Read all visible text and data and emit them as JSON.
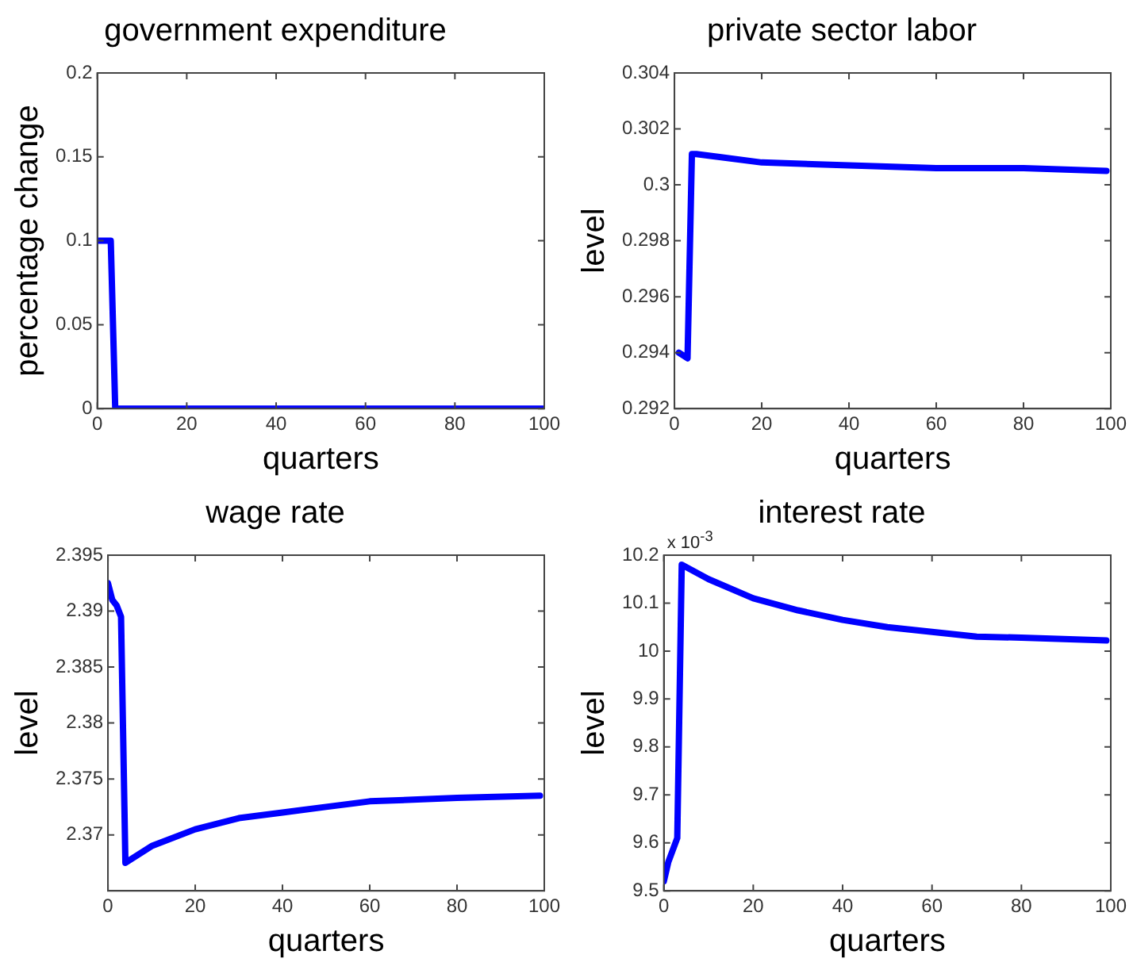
{
  "chart_data": [
    {
      "type": "line",
      "title": "government expenditure",
      "xlabel": "quarters",
      "ylabel": "percentage change",
      "xlim": [
        0,
        100
      ],
      "xticks": [
        0,
        20,
        40,
        60,
        80,
        100
      ],
      "ylim": [
        0,
        0.2
      ],
      "yticks": [
        0,
        0.05,
        0.1,
        0.15,
        0.2
      ],
      "grid": false,
      "legend": false,
      "marker": "none",
      "series": [
        {
          "color": "#0000ff",
          "x": [
            0,
            1,
            2,
            3,
            4,
            100
          ],
          "values": [
            0.1,
            0.1,
            0.1,
            0.1,
            0,
            0
          ]
        }
      ]
    },
    {
      "type": "line",
      "title": "private sector labor",
      "xlabel": "quarters",
      "ylabel": "level",
      "xlim": [
        0,
        100
      ],
      "xticks": [
        0,
        20,
        40,
        60,
        80,
        100
      ],
      "ylim": [
        0.292,
        0.304
      ],
      "yticks": [
        0.292,
        0.294,
        0.296,
        0.298,
        0.3,
        0.302,
        0.304
      ],
      "grid": false,
      "legend": false,
      "marker": "none",
      "series": [
        {
          "color": "#0000ff",
          "x": [
            1,
            2,
            3,
            4,
            5,
            10,
            20,
            40,
            60,
            80,
            99
          ],
          "values": [
            0.294,
            0.2939,
            0.2938,
            0.3011,
            0.3011,
            0.301,
            0.3008,
            0.3007,
            0.3006,
            0.3006,
            0.3005
          ]
        }
      ]
    },
    {
      "type": "line",
      "title": "wage rate",
      "xlabel": "quarters",
      "ylabel": "level",
      "xlim": [
        0,
        100
      ],
      "xticks": [
        0,
        20,
        40,
        60,
        80,
        100
      ],
      "ylim": [
        2.365,
        2.395
      ],
      "yticks": [
        2.37,
        2.375,
        2.38,
        2.385,
        2.39,
        2.395
      ],
      "grid": false,
      "legend": false,
      "marker": "none",
      "series": [
        {
          "color": "#0000ff",
          "x": [
            0,
            1,
            2,
            3,
            4,
            10,
            20,
            30,
            40,
            50,
            60,
            80,
            99
          ],
          "values": [
            2.3925,
            2.391,
            2.3905,
            2.3895,
            2.3675,
            2.369,
            2.3705,
            2.3715,
            2.372,
            2.3725,
            2.373,
            2.3733,
            2.3735
          ]
        }
      ]
    },
    {
      "type": "line",
      "title": "interest rate",
      "xlabel": "quarters",
      "ylabel": "level",
      "annotations": [
        "x 10$^{-3}$"
      ],
      "xlim": [
        0,
        100
      ],
      "xticks": [
        0,
        20,
        40,
        60,
        80,
        100
      ],
      "ylim": [
        9.5,
        10.2
      ],
      "yticks": [
        9.5,
        9.6,
        9.7,
        9.8,
        9.9,
        10,
        10.1,
        10.2
      ],
      "grid": false,
      "legend": false,
      "marker": "none",
      "series": [
        {
          "color": "#0000ff",
          "x": [
            0,
            1,
            3,
            4,
            10,
            20,
            30,
            40,
            50,
            60,
            70,
            80,
            99
          ],
          "values": [
            9.52,
            9.56,
            9.61,
            10.18,
            10.15,
            10.11,
            10.085,
            10.065,
            10.05,
            10.04,
            10.03,
            10.028,
            10.022
          ]
        }
      ]
    }
  ]
}
